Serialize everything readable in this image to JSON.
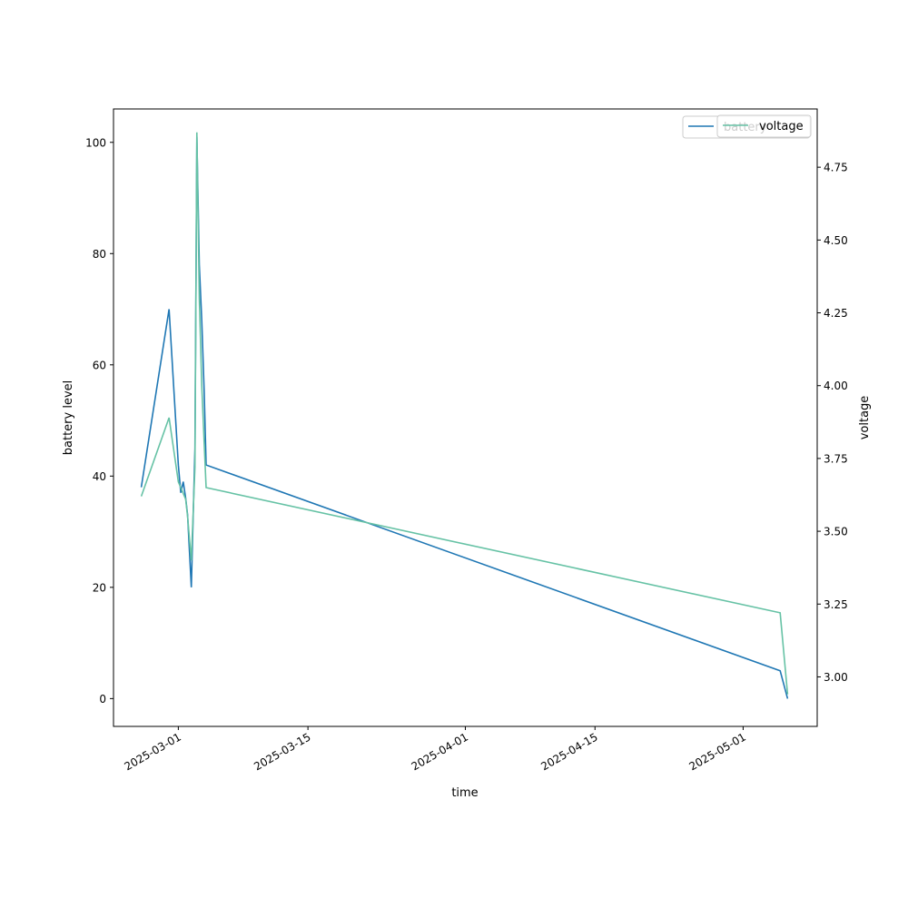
{
  "chart_data": {
    "type": "line",
    "xlabel": "time",
    "ylabel": "battery level",
    "y2label": "voltage",
    "xlim": [
      "2025-02-22",
      "2025-05-09"
    ],
    "ylim": [
      -5,
      106
    ],
    "y2lim": [
      2.83,
      4.95
    ],
    "x_ticks": [
      "2025-03-01",
      "2025-03-15",
      "2025-04-01",
      "2025-04-15",
      "2025-05-01"
    ],
    "y_ticks": [
      0,
      20,
      40,
      60,
      80,
      100
    ],
    "y2_ticks": [
      3.0,
      3.25,
      3.5,
      3.75,
      4.0,
      4.25,
      4.5,
      4.75
    ],
    "grid": false,
    "legend": [
      {
        "label": "battery",
        "color": "#1f77b4"
      },
      {
        "label": "voltage",
        "color": "#66c2a5"
      }
    ],
    "legend_position": "top-right",
    "series": [
      {
        "name": "battery",
        "axis": "left",
        "color": "#1f77b4",
        "points": [
          [
            "2025-02-25",
            38
          ],
          [
            "2025-02-28",
            70
          ],
          [
            "2025-03-01",
            42
          ],
          [
            "2025-03-01",
            37
          ],
          [
            "2025-03-01",
            39
          ],
          [
            "2025-03-01",
            36
          ],
          [
            "2025-03-02",
            33
          ],
          [
            "2025-03-02",
            20
          ],
          [
            "2025-03-02",
            45
          ],
          [
            "2025-03-03",
            101
          ],
          [
            "2025-03-03",
            78
          ],
          [
            "2025-03-03",
            68
          ],
          [
            "2025-03-03",
            55
          ],
          [
            "2025-03-04",
            42
          ],
          [
            "2025-05-05",
            5
          ],
          [
            "2025-05-05",
            0
          ]
        ]
      },
      {
        "name": "voltage",
        "axis": "right",
        "color": "#66c2a5",
        "points": [
          [
            "2025-02-25",
            3.62
          ],
          [
            "2025-02-28",
            3.89
          ],
          [
            "2025-03-01",
            3.67
          ],
          [
            "2025-03-01",
            3.61
          ],
          [
            "2025-03-02",
            3.55
          ],
          [
            "2025-03-02",
            3.4
          ],
          [
            "2025-03-02",
            3.72
          ],
          [
            "2025-03-03",
            4.87
          ],
          [
            "2025-03-03",
            4.3
          ],
          [
            "2025-03-03",
            4.0
          ],
          [
            "2025-03-03",
            3.8
          ],
          [
            "2025-03-04",
            3.65
          ],
          [
            "2025-05-05",
            3.22
          ],
          [
            "2025-05-05",
            2.94
          ]
        ]
      }
    ]
  }
}
